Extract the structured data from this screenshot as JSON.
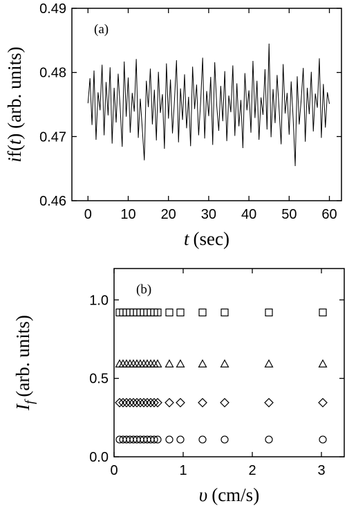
{
  "chart_data": [
    {
      "type": "line",
      "annotation": "(a)",
      "xlabel": [
        "t",
        "(sec)"
      ],
      "ylabel": [
        "i",
        "f",
        "(",
        "t",
        ") (arb. units)"
      ],
      "xlim": [
        -4,
        63
      ],
      "ylim": [
        0.46,
        0.49
      ],
      "xticks": [
        0,
        10,
        20,
        30,
        40,
        50,
        60
      ],
      "yticks": [
        0.46,
        0.47,
        0.48,
        0.49
      ],
      "color": "#000000",
      "x": [
        0,
        0.5,
        1,
        1.5,
        2,
        2.5,
        3,
        3.5,
        4,
        4.5,
        5,
        5.5,
        6,
        6.5,
        7,
        7.5,
        8,
        8.5,
        9,
        9.5,
        10,
        10.5,
        11,
        11.5,
        12,
        12.5,
        13,
        13.5,
        14,
        14.5,
        15,
        15.5,
        16,
        16.5,
        17,
        17.5,
        18,
        18.5,
        19,
        19.5,
        20,
        20.5,
        21,
        21.5,
        22,
        22.5,
        23,
        23.5,
        24,
        24.5,
        25,
        25.5,
        26,
        26.5,
        27,
        27.5,
        28,
        28.5,
        29,
        29.5,
        30,
        30.5,
        31,
        31.5,
        32,
        32.5,
        33,
        33.5,
        34,
        34.5,
        35,
        35.5,
        36,
        36.5,
        37,
        37.5,
        38,
        38.5,
        39,
        39.5,
        40,
        40.5,
        41,
        41.5,
        42,
        42.5,
        43,
        43.5,
        44,
        44.5,
        45,
        45.5,
        46,
        46.5,
        47,
        47.5,
        48,
        48.5,
        49,
        49.5,
        50,
        50.5,
        51,
        51.5,
        52,
        52.5,
        53,
        53.5,
        54,
        54.5,
        55,
        55.5,
        56,
        56.5,
        57,
        57.5,
        58,
        58.5,
        59,
        59.5,
        60
      ],
      "values": [
        0.4752,
        0.4791,
        0.4718,
        0.4803,
        0.4695,
        0.4769,
        0.4741,
        0.4812,
        0.4702,
        0.4785,
        0.4733,
        0.4808,
        0.4689,
        0.4776,
        0.4722,
        0.4798,
        0.4745,
        0.4684,
        0.4817,
        0.4731,
        0.4792,
        0.4706,
        0.4768,
        0.4739,
        0.4821,
        0.4698,
        0.4759,
        0.4712,
        0.4663,
        0.4787,
        0.4746,
        0.4806,
        0.4719,
        0.4773,
        0.4694,
        0.4801,
        0.4737,
        0.4766,
        0.4681,
        0.4814,
        0.4728,
        0.4789,
        0.4705,
        0.4757,
        0.4819,
        0.4691,
        0.4775,
        0.4726,
        0.4797,
        0.4713,
        0.4762,
        0.4685,
        0.4809,
        0.4743,
        0.4781,
        0.4702,
        0.4754,
        0.4823,
        0.4697,
        0.4771,
        0.4732,
        0.4793,
        0.4687,
        0.4816,
        0.4748,
        0.4709,
        0.4779,
        0.4724,
        0.4802,
        0.4693,
        0.4764,
        0.4738,
        0.4811,
        0.4701,
        0.4783,
        0.4716,
        0.4757,
        0.4682,
        0.4799,
        0.4741,
        0.4772,
        0.4706,
        0.4818,
        0.4729,
        0.4787,
        0.4695,
        0.4761,
        0.4734,
        0.4805,
        0.4711,
        0.4845,
        0.4699,
        0.4774,
        0.4721,
        0.4796,
        0.4742,
        0.4688,
        0.4813,
        0.4736,
        0.4768,
        0.4703,
        0.4786,
        0.4727,
        0.4654,
        0.4794,
        0.4719,
        0.4758,
        0.4807,
        0.4692,
        0.4776,
        0.4735,
        0.4801,
        0.4708,
        0.4767,
        0.4745,
        0.4822,
        0.4698,
        0.4782,
        0.4714,
        0.4769,
        0.4751
      ]
    },
    {
      "type": "scatter",
      "annotation": "(b)",
      "xlabel": [
        "υ",
        "(cm/s)"
      ],
      "ylabel": [
        "I",
        "f",
        "(arb. units)"
      ],
      "xlim": [
        0,
        3.33
      ],
      "ylim": [
        0,
        1.2
      ],
      "xticks": [
        0,
        1,
        2,
        3
      ],
      "yticks": [
        {
          "value": 0,
          "label": "0.0"
        },
        {
          "value": 0.5,
          "label": "0.5"
        },
        {
          "value": 1,
          "label": "1.0"
        }
      ],
      "series": [
        {
          "marker": "square",
          "color": "#000000",
          "x": [
            0.08,
            0.13,
            0.18,
            0.23,
            0.28,
            0.33,
            0.38,
            0.43,
            0.48,
            0.53,
            0.58,
            0.63,
            0.8,
            0.96,
            1.28,
            1.6,
            2.24,
            3.02
          ],
          "values": [
            0.92,
            0.92,
            0.92,
            0.92,
            0.92,
            0.92,
            0.92,
            0.92,
            0.92,
            0.92,
            0.92,
            0.92,
            0.92,
            0.92,
            0.92,
            0.92,
            0.92,
            0.92
          ]
        },
        {
          "marker": "triangle",
          "color": "#000000",
          "x": [
            0.08,
            0.13,
            0.18,
            0.23,
            0.28,
            0.33,
            0.38,
            0.43,
            0.48,
            0.53,
            0.58,
            0.63,
            0.8,
            0.96,
            1.28,
            1.6,
            2.24,
            3.02
          ],
          "values": [
            0.59,
            0.59,
            0.59,
            0.59,
            0.59,
            0.59,
            0.59,
            0.59,
            0.59,
            0.59,
            0.59,
            0.59,
            0.59,
            0.59,
            0.59,
            0.59,
            0.59,
            0.59
          ]
        },
        {
          "marker": "diamond",
          "color": "#000000",
          "x": [
            0.08,
            0.13,
            0.18,
            0.23,
            0.28,
            0.33,
            0.38,
            0.43,
            0.48,
            0.53,
            0.58,
            0.63,
            0.8,
            0.96,
            1.28,
            1.6,
            2.24,
            3.02
          ],
          "values": [
            0.345,
            0.345,
            0.345,
            0.345,
            0.345,
            0.345,
            0.345,
            0.345,
            0.345,
            0.345,
            0.345,
            0.345,
            0.345,
            0.345,
            0.345,
            0.345,
            0.345,
            0.345
          ]
        },
        {
          "marker": "circle",
          "color": "#000000",
          "x": [
            0.08,
            0.13,
            0.18,
            0.23,
            0.28,
            0.33,
            0.38,
            0.43,
            0.48,
            0.53,
            0.58,
            0.63,
            0.8,
            0.96,
            1.28,
            1.6,
            2.24,
            3.02
          ],
          "values": [
            0.11,
            0.11,
            0.11,
            0.11,
            0.11,
            0.11,
            0.11,
            0.11,
            0.11,
            0.11,
            0.11,
            0.11,
            0.11,
            0.11,
            0.11,
            0.11,
            0.11,
            0.11
          ]
        }
      ]
    }
  ]
}
